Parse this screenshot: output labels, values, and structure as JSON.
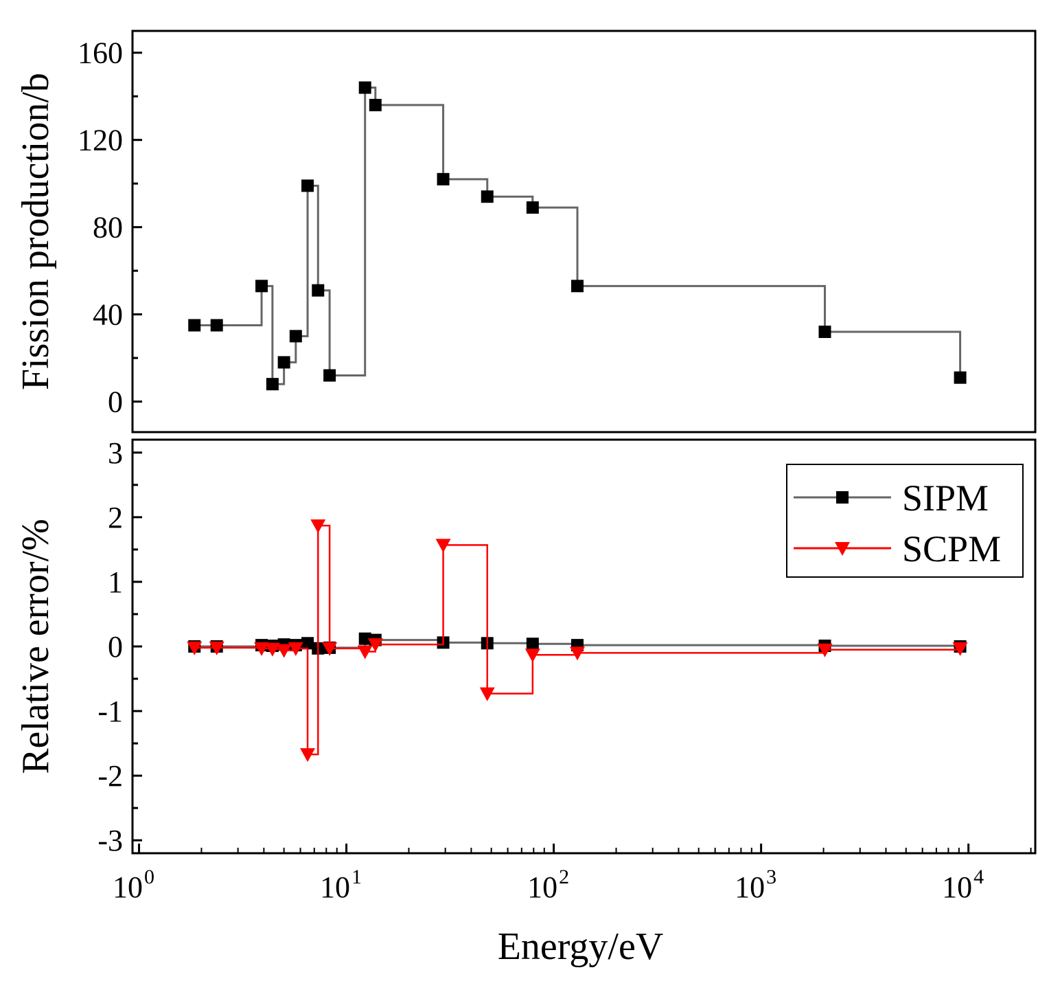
{
  "chart_data": [
    {
      "panel": "top",
      "type": "line",
      "line_shape": "step",
      "ylabel": "Fission production/b",
      "ylim": [
        -14,
        170
      ],
      "yticks": [
        "0",
        "40",
        "80",
        "120",
        "160"
      ],
      "ytick_values": [
        0,
        40,
        80,
        120,
        160
      ],
      "xscale": "log",
      "xlim": [
        0.93,
        21000
      ],
      "series": [
        {
          "color": "#666666",
          "marker": "square",
          "marker_color": "#000000",
          "points": [
            {
              "x": 1.85,
              "y": 35
            },
            {
              "x": 2.37,
              "y": 35
            },
            {
              "x": 3.9,
              "y": 53
            },
            {
              "x": 4.4,
              "y": 8
            },
            {
              "x": 5.0,
              "y": 18
            },
            {
              "x": 5.7,
              "y": 30
            },
            {
              "x": 6.5,
              "y": 99
            },
            {
              "x": 7.3,
              "y": 51
            },
            {
              "x": 8.3,
              "y": 12
            },
            {
              "x": 12.3,
              "y": 144
            },
            {
              "x": 13.8,
              "y": 136
            },
            {
              "x": 29.3,
              "y": 102
            },
            {
              "x": 47.8,
              "y": 94
            },
            {
              "x": 79.1,
              "y": 89
            },
            {
              "x": 130,
              "y": 53
            },
            {
              "x": 2030,
              "y": 32
            },
            {
              "x": 9120,
              "y": 11
            }
          ]
        }
      ]
    },
    {
      "panel": "bottom",
      "type": "line",
      "line_shape": "step",
      "ylabel": "Relative error/%",
      "xlabel": "Energy/eV",
      "ylim": [
        -3.2,
        3.2
      ],
      "yticks": [
        "-3",
        "-2",
        "-1",
        "0",
        "1",
        "2",
        "3"
      ],
      "ytick_values": [
        -3,
        -2,
        -1,
        0,
        1,
        2,
        3
      ],
      "xscale": "log",
      "xlim": [
        0.93,
        21000
      ],
      "xtick_values": [
        1,
        10,
        100,
        1000,
        10000
      ],
      "xticks": [
        {
          "base": "10",
          "exp": "0"
        },
        {
          "base": "10",
          "exp": "1"
        },
        {
          "base": "10",
          "exp": "2"
        },
        {
          "base": "10",
          "exp": "3"
        },
        {
          "base": "10",
          "exp": "4"
        }
      ],
      "legend_position": "top-right",
      "series": [
        {
          "name": "SIPM",
          "color": "#666666",
          "marker": "square",
          "marker_color": "#000000",
          "points": [
            {
              "x": 1.85,
              "y": 0.0
            },
            {
              "x": 2.37,
              "y": 0.0
            },
            {
              "x": 3.9,
              "y": 0.02
            },
            {
              "x": 4.4,
              "y": 0.01
            },
            {
              "x": 5.0,
              "y": 0.03
            },
            {
              "x": 5.7,
              "y": 0.02
            },
            {
              "x": 6.5,
              "y": 0.05
            },
            {
              "x": 7.3,
              "y": -0.03
            },
            {
              "x": 8.3,
              "y": -0.02
            },
            {
              "x": 12.3,
              "y": 0.12
            },
            {
              "x": 13.8,
              "y": 0.1
            },
            {
              "x": 29.3,
              "y": 0.06
            },
            {
              "x": 47.8,
              "y": 0.05
            },
            {
              "x": 79.1,
              "y": 0.04
            },
            {
              "x": 130,
              "y": 0.02
            },
            {
              "x": 2030,
              "y": 0.01
            },
            {
              "x": 9120,
              "y": 0.0
            }
          ]
        },
        {
          "name": "SCPM",
          "color": "#ff0000",
          "marker": "triangle-down",
          "marker_color": "#ff0000",
          "points": [
            {
              "x": 1.85,
              "y": -0.02
            },
            {
              "x": 2.37,
              "y": -0.02
            },
            {
              "x": 3.9,
              "y": -0.03
            },
            {
              "x": 4.4,
              "y": -0.04
            },
            {
              "x": 5.0,
              "y": -0.06
            },
            {
              "x": 5.7,
              "y": -0.03
            },
            {
              "x": 6.5,
              "y": -1.67
            },
            {
              "x": 7.3,
              "y": 1.87
            },
            {
              "x": 8.3,
              "y": -0.03
            },
            {
              "x": 12.3,
              "y": -0.08
            },
            {
              "x": 13.8,
              "y": 0.03
            },
            {
              "x": 29.3,
              "y": 1.57
            },
            {
              "x": 47.8,
              "y": -0.73
            },
            {
              "x": 79.1,
              "y": -0.13
            },
            {
              "x": 130,
              "y": -0.1
            },
            {
              "x": 2030,
              "y": -0.05
            },
            {
              "x": 9120,
              "y": -0.03
            }
          ]
        }
      ]
    }
  ]
}
